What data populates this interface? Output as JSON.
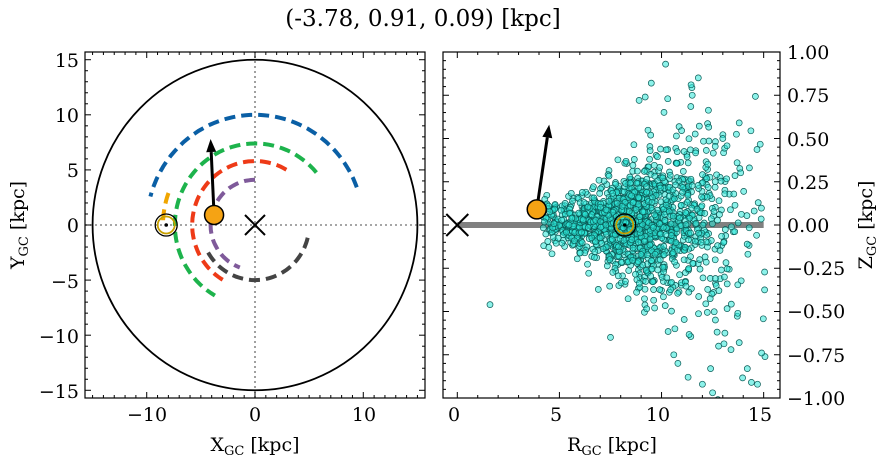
{
  "figure": {
    "title": "(-3.78, 0.91, 0.09) [kpc]"
  },
  "colors": {
    "spiral_arms": [
      "#0a5fa5",
      "#1db34c",
      "#f0a500",
      "#ee3a17",
      "#7f5a9a",
      "#444444"
    ],
    "stars": "#2ee8d8",
    "object": "#f5a314",
    "sun_ring": "#c8a000",
    "disk_line": "#808080"
  },
  "chart_data": [
    {
      "type": "line",
      "panel": "left",
      "xlabel": "X_GC [kpc]",
      "ylabel": "Y_GC [kpc]",
      "xlim": [
        -15.7,
        15.7
      ],
      "ylim": [
        -15.7,
        15.7
      ],
      "xticks": [
        -10,
        0,
        10
      ],
      "yticks": [
        -15,
        -10,
        -5,
        0,
        5,
        10,
        15
      ],
      "xtick_labels": [
        "−10",
        "0",
        "10"
      ],
      "ytick_labels": [
        "−15",
        "−10",
        "−5",
        "0",
        "5",
        "10",
        "15"
      ],
      "boundary_circle_radius": 15,
      "galactic_center": [
        0,
        0
      ],
      "sun": [
        -8.2,
        0
      ],
      "object": [
        -3.78,
        0.91
      ],
      "velocity_arrow_tip": [
        -4.1,
        7.8
      ],
      "arms": [
        {
          "radius": 10.0,
          "from_deg": 20,
          "to_deg": 165
        },
        {
          "radius": 7.4,
          "from_deg": 40,
          "to_deg": 240
        },
        {
          "radius": 8.5,
          "from_deg": 160,
          "to_deg": 180
        },
        {
          "radius": 5.8,
          "from_deg": 60,
          "to_deg": 240
        },
        {
          "radius": 4.1,
          "from_deg": 90,
          "to_deg": 250
        },
        {
          "radius": 5.0,
          "from_deg": 210,
          "to_deg": 350
        }
      ]
    },
    {
      "type": "scatter",
      "panel": "right",
      "xlabel": "R_GC [kpc]",
      "ylabel": "Z_GC [kpc]",
      "xlim": [
        -0.7,
        15.8
      ],
      "ylim": [
        -1.0,
        1.0
      ],
      "xticks": [
        0,
        5,
        10,
        15
      ],
      "yticks": [
        -1.0,
        -0.75,
        -0.5,
        -0.25,
        0.0,
        0.25,
        0.5,
        0.75,
        1.0
      ],
      "xtick_labels": [
        "0",
        "5",
        "10",
        "15"
      ],
      "ytick_labels": [
        "−1.00",
        "−0.75",
        "−0.50",
        "−0.25",
        "0.00",
        "0.25",
        "0.50",
        "0.75",
        "1.00"
      ],
      "galactic_center": [
        0,
        0
      ],
      "sun": [
        8.2,
        0.0
      ],
      "object": [
        3.89,
        0.09
      ],
      "velocity_arrow_tip": [
        4.5,
        0.58
      ],
      "disk_line": [
        0,
        15
      ],
      "stars": {
        "count": 1500,
        "center": [
          8.8,
          0.01
        ],
        "spread_r": 2.3,
        "outliers": [
          [
            1.6,
            -0.46
          ],
          [
            7.5,
            -0.65
          ],
          [
            10.6,
            -0.75
          ],
          [
            12.4,
            -0.83
          ],
          [
            14.4,
            -0.91
          ],
          [
            14.7,
            -0.92
          ],
          [
            13.8,
            -0.68
          ],
          [
            14.2,
            -0.83
          ],
          [
            12.5,
            -0.97
          ],
          [
            11.3,
            -0.88
          ],
          [
            13.4,
            -0.72
          ],
          [
            10.2,
            0.93
          ],
          [
            11.8,
            0.85
          ],
          [
            11.5,
            0.75
          ],
          [
            9.5,
            0.82
          ],
          [
            9.2,
            0.74
          ],
          [
            10.3,
            0.73
          ],
          [
            8.9,
            0.72
          ],
          [
            13.8,
            0.59
          ],
          [
            14.3,
            0.33
          ],
          [
            13.0,
            0.5
          ],
          [
            14.9,
            -0.74
          ],
          [
            10.8,
            -0.8
          ],
          [
            12.0,
            -0.92
          ]
        ]
      }
    }
  ]
}
